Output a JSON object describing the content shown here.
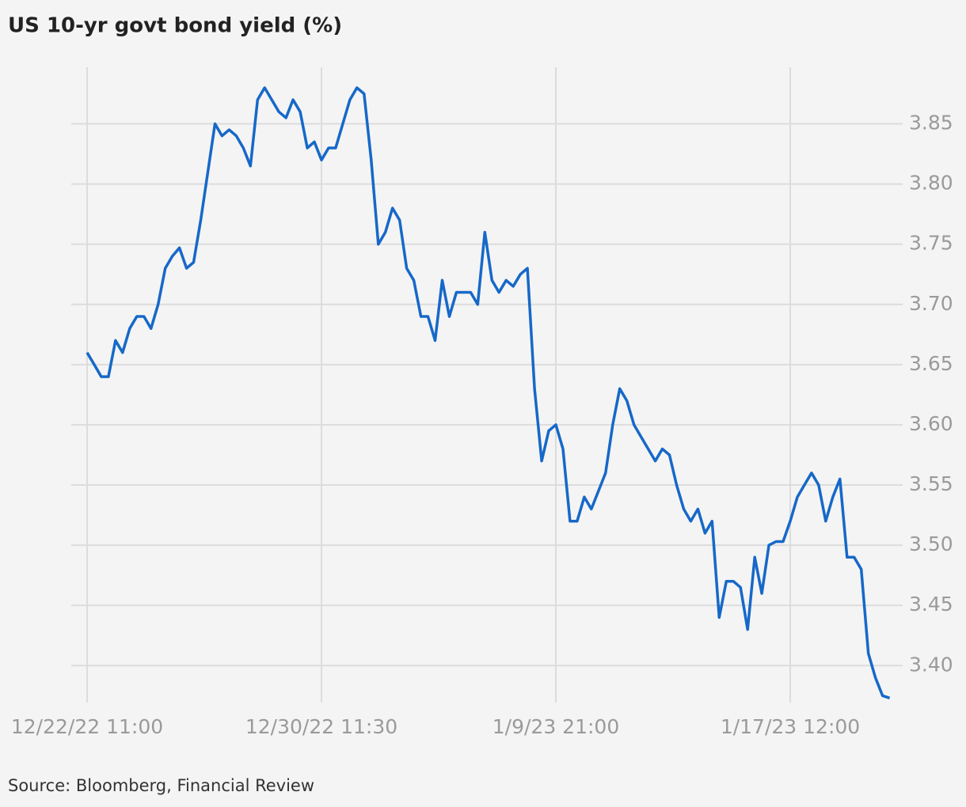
{
  "chart_data": {
    "type": "line",
    "title": "US 10-yr govt bond yield (%)",
    "source": "Source: Bloomberg, Financial Review",
    "color": "#1668c8",
    "grid": true,
    "categories": [
      "12/22/22 11:00",
      null,
      null,
      null,
      null,
      null,
      null,
      null,
      null,
      null,
      null,
      null,
      null,
      null,
      null,
      null,
      null,
      null,
      null,
      null,
      null,
      null,
      null,
      null,
      null,
      null,
      null,
      null,
      null,
      null,
      null,
      null,
      null,
      "12/30/22 11:30",
      null,
      null,
      null,
      null,
      null,
      null,
      null,
      null,
      null,
      null,
      null,
      null,
      null,
      null,
      null,
      null,
      null,
      null,
      null,
      null,
      null,
      null,
      null,
      null,
      null,
      null,
      null,
      null,
      null,
      null,
      null,
      null,
      "1/9/23 21:00",
      null,
      null,
      null,
      null,
      null,
      null,
      null,
      null,
      null,
      null,
      null,
      null,
      null,
      null,
      null,
      null,
      null,
      null,
      null,
      null,
      null,
      null,
      null,
      null,
      null,
      null,
      null,
      null,
      null,
      null,
      null,
      null,
      "1/17/23 12:00",
      null,
      null,
      null,
      null,
      null,
      null,
      null,
      null,
      null,
      null,
      null,
      null,
      null,
      null
    ],
    "values": [
      3.66,
      3.65,
      3.64,
      3.64,
      3.67,
      3.66,
      3.68,
      3.69,
      3.69,
      3.68,
      3.7,
      3.73,
      3.74,
      3.747,
      3.73,
      3.735,
      3.77,
      3.81,
      3.85,
      3.84,
      3.845,
      3.84,
      3.83,
      3.815,
      3.87,
      3.88,
      3.87,
      3.86,
      3.855,
      3.87,
      3.86,
      3.83,
      3.835,
      3.82,
      3.83,
      3.83,
      3.85,
      3.87,
      3.88,
      3.875,
      3.82,
      3.75,
      3.76,
      3.78,
      3.77,
      3.73,
      3.72,
      3.69,
      3.69,
      3.67,
      3.72,
      3.69,
      3.71,
      3.71,
      3.71,
      3.7,
      3.76,
      3.72,
      3.71,
      3.72,
      3.715,
      3.725,
      3.73,
      3.63,
      3.57,
      3.595,
      3.6,
      3.58,
      3.52,
      3.52,
      3.54,
      3.53,
      3.545,
      3.56,
      3.6,
      3.63,
      3.62,
      3.6,
      3.59,
      3.58,
      3.57,
      3.58,
      3.575,
      3.55,
      3.53,
      3.52,
      3.53,
      3.51,
      3.52,
      3.44,
      3.47,
      3.47,
      3.465,
      3.43,
      3.49,
      3.46,
      3.5,
      3.503,
      3.503,
      3.52,
      3.54,
      3.55,
      3.56,
      3.55,
      3.52,
      3.54,
      3.555,
      3.49,
      3.49,
      3.48,
      3.41,
      3.39,
      3.375,
      3.373
    ],
    "ylim": [
      3.366,
      3.897
    ],
    "yticks": [
      {
        "value": 3.4,
        "label": "3.40"
      },
      3.45,
      {
        "value": 3.5,
        "label": "3.50"
      },
      3.55,
      {
        "value": 3.6,
        "label": "3.60"
      },
      3.65,
      {
        "value": 3.7,
        "label": "3.70"
      },
      3.75,
      {
        "value": 3.8,
        "label": "3.80"
      },
      3.85
    ]
  }
}
